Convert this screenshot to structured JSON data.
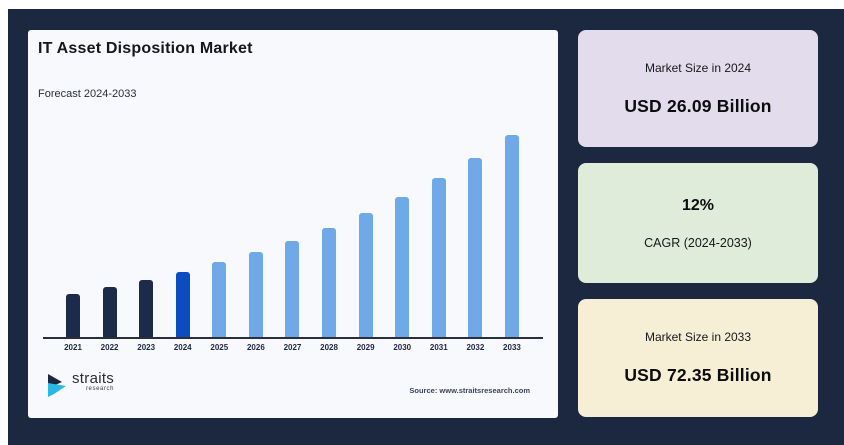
{
  "header": {
    "title": "IT Asset Disposition Market",
    "subtitle": "Forecast 2024-2033"
  },
  "chart_data": {
    "type": "bar",
    "title": "IT Asset Disposition Market",
    "subtitle": "Forecast 2024-2033",
    "categories": [
      "2021",
      "2022",
      "2023",
      "2024",
      "2025",
      "2026",
      "2027",
      "2028",
      "2029",
      "2030",
      "2031",
      "2032",
      "2033"
    ],
    "values": [
      18.57,
      20.8,
      23.29,
      26.09,
      29.22,
      32.73,
      36.65,
      41.05,
      45.98,
      51.5,
      57.68,
      64.6,
      72.35
    ],
    "unit": "USD Billion",
    "ylabel": "",
    "xlabel": "",
    "ylim": [
      4,
      72.35
    ],
    "grid": false,
    "legend": "none",
    "bar_roles": [
      "historical",
      "historical",
      "historical",
      "base-year",
      "forecast",
      "forecast",
      "forecast",
      "forecast",
      "forecast",
      "forecast",
      "forecast",
      "forecast",
      "forecast"
    ],
    "palette": {
      "historical": "#1c2b4a",
      "base-year": "#0b4dc0",
      "forecast": "#6fa9e8"
    },
    "labeled_points": {
      "2024": 26.09,
      "2033": 72.35
    },
    "cagr_percent": 12
  },
  "cards": [
    {
      "label": "Market Size in 2024",
      "value": "USD 26.09 Billion",
      "bg": "#e2dcec"
    },
    {
      "value": "12%",
      "label": "CAGR (2024-2033)",
      "bg": "#dfecd9"
    },
    {
      "label": "Market Size in 2033",
      "value": "USD 72.35 Billion",
      "bg": "#f6efd5"
    }
  ],
  "footer": {
    "brand": "straits",
    "brand_sub": "research",
    "source": "Source: www.straitsresearch.com"
  },
  "colors": {
    "page_background": "#ffffff",
    "panel_background": "#1c2740",
    "chart_card_background": "#f8f9fc",
    "logo_dark": "#1c2740",
    "logo_cyan": "#29b8e8"
  }
}
